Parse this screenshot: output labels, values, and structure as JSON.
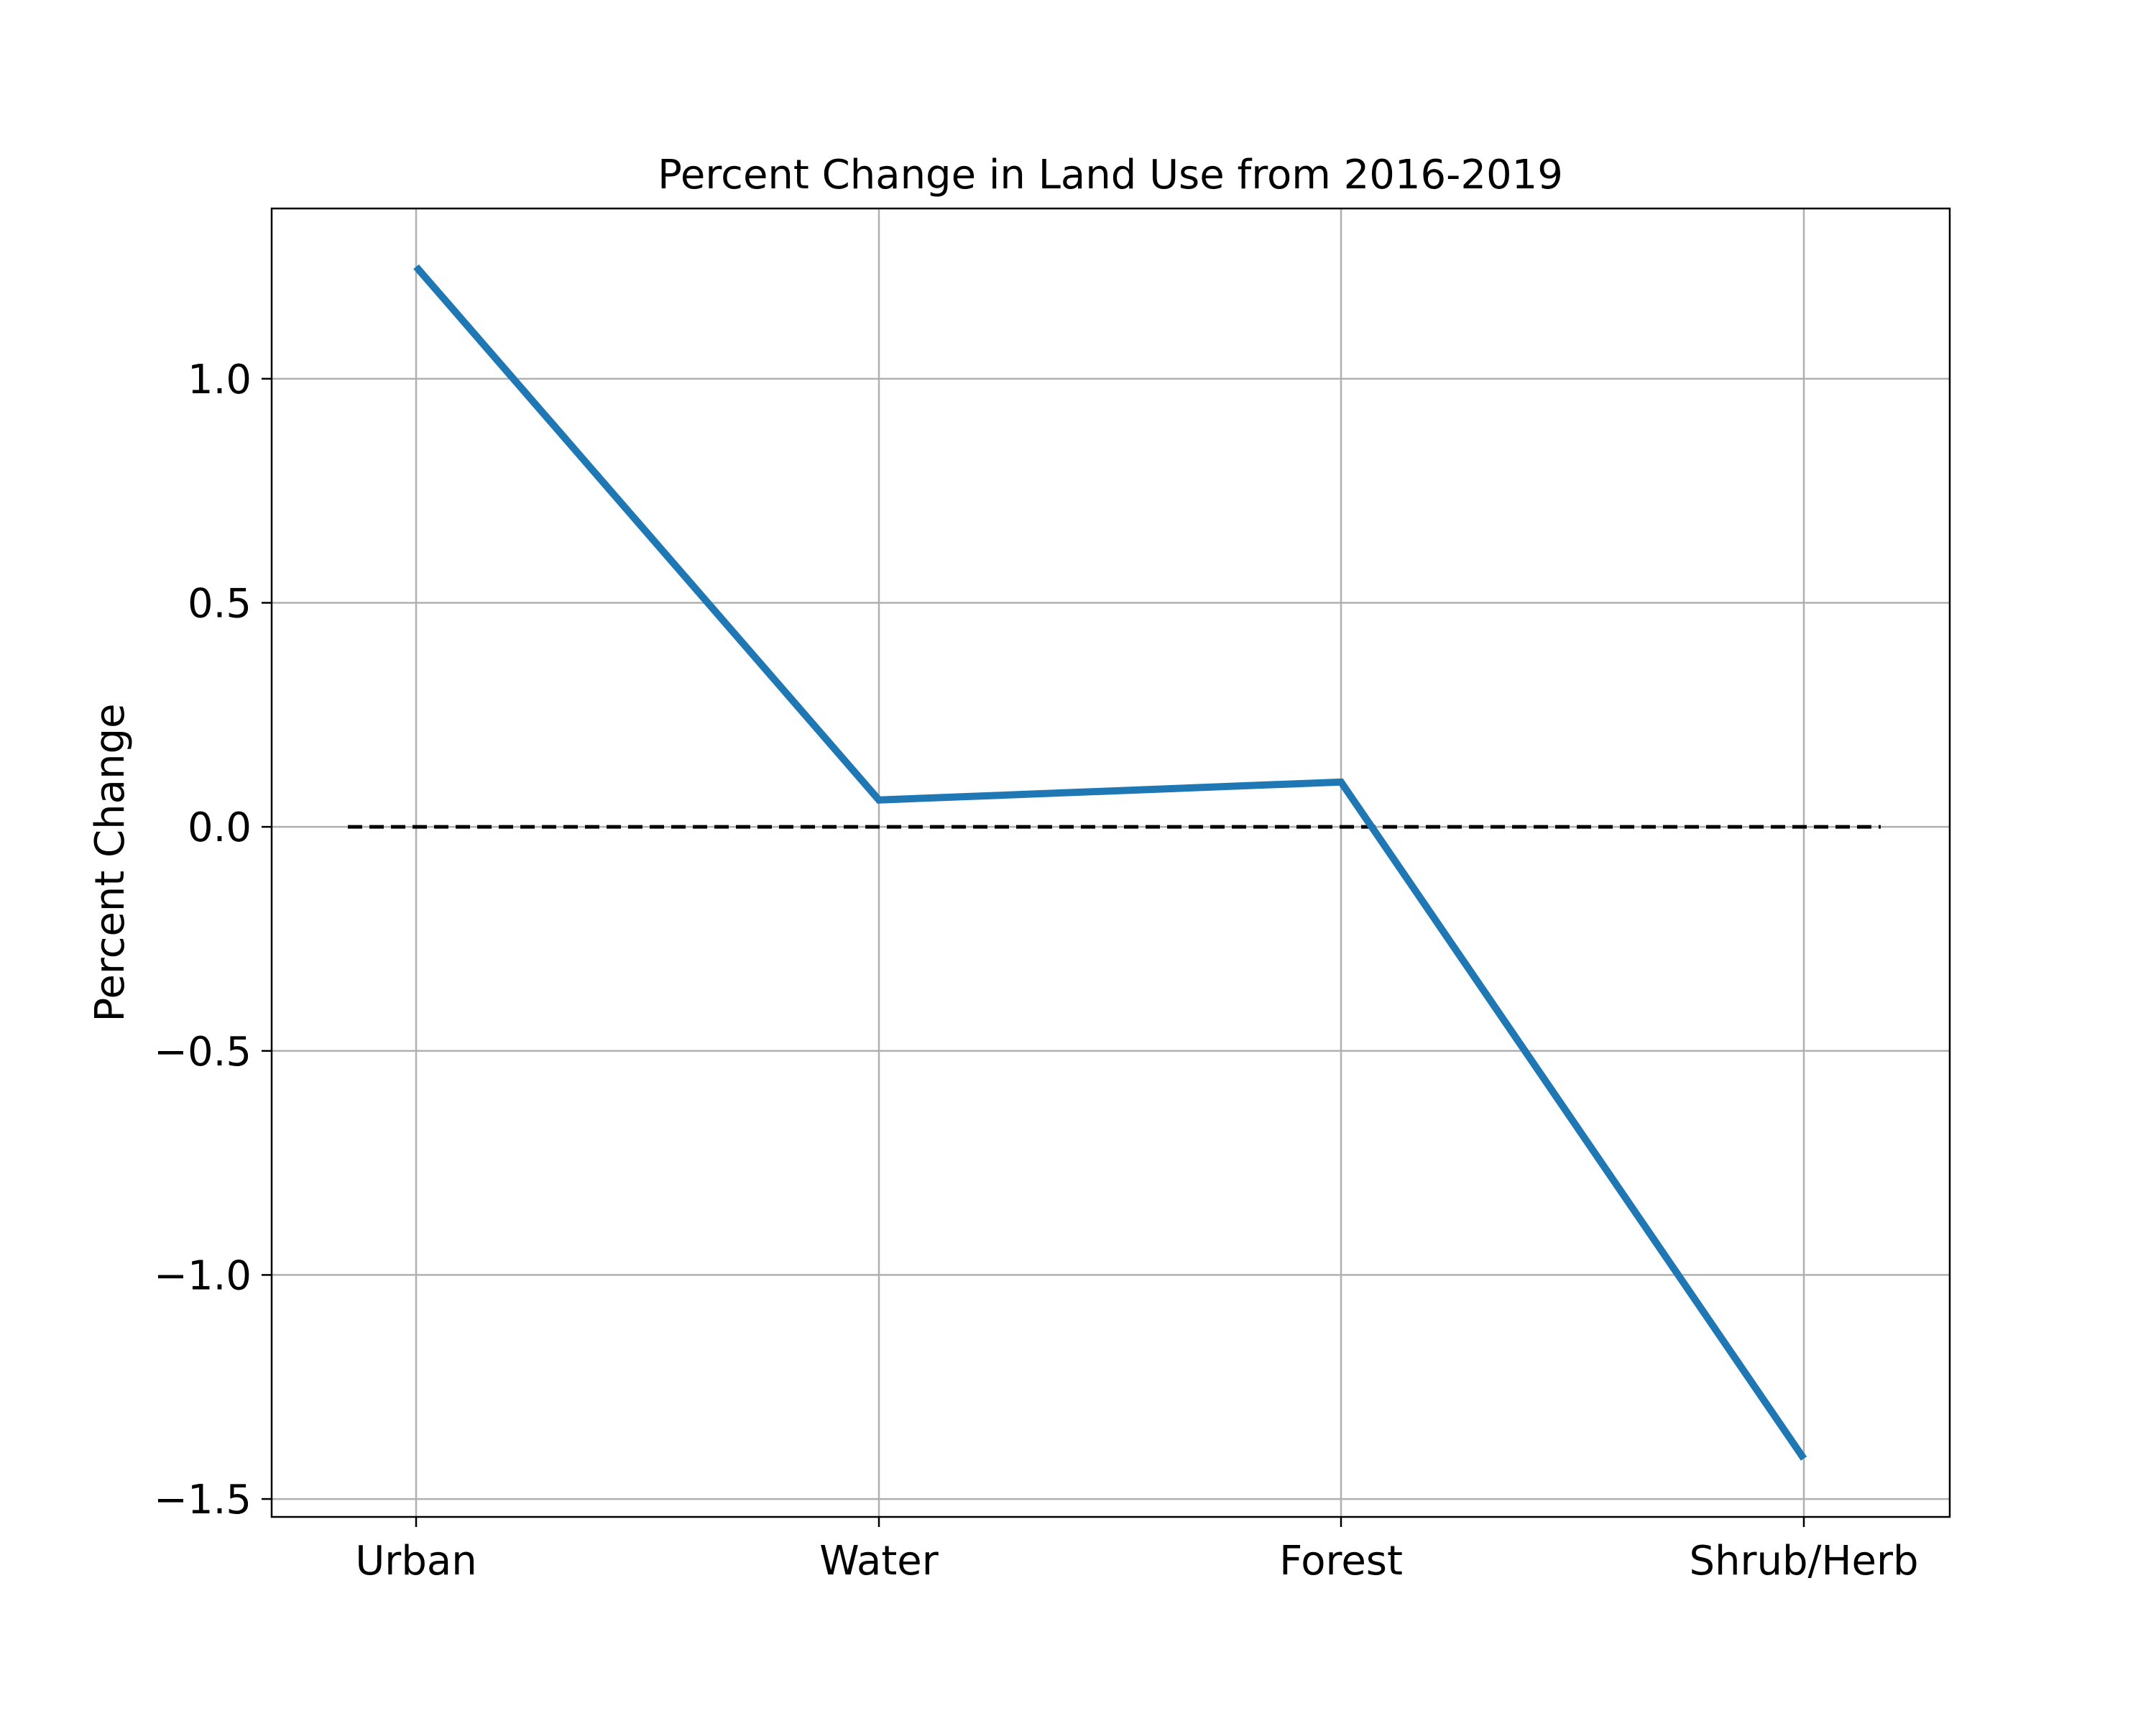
{
  "chart_data": {
    "type": "line",
    "title": "Percent Change in Land Use from 2016-2019",
    "xlabel": "",
    "ylabel": "Percent Change",
    "categories": [
      "Urban",
      "Water",
      "Forest",
      "Shrub/Herb"
    ],
    "series": [
      {
        "values": [
          1.25,
          0.06,
          0.1,
          -1.41
        ],
        "color": "#1f77b4"
      }
    ],
    "reference_line": {
      "y": 0.0,
      "style": "dashed",
      "color": "#000000"
    },
    "ylim": [
      -1.54,
      1.38
    ],
    "y_ticks": [
      -1.5,
      -1.0,
      -0.5,
      0.0,
      0.5,
      1.0
    ],
    "y_tick_labels": [
      "−1.5",
      "−1.0",
      "−0.5",
      "0.0",
      "0.5",
      "1.0"
    ],
    "grid": true,
    "legend": "none"
  }
}
